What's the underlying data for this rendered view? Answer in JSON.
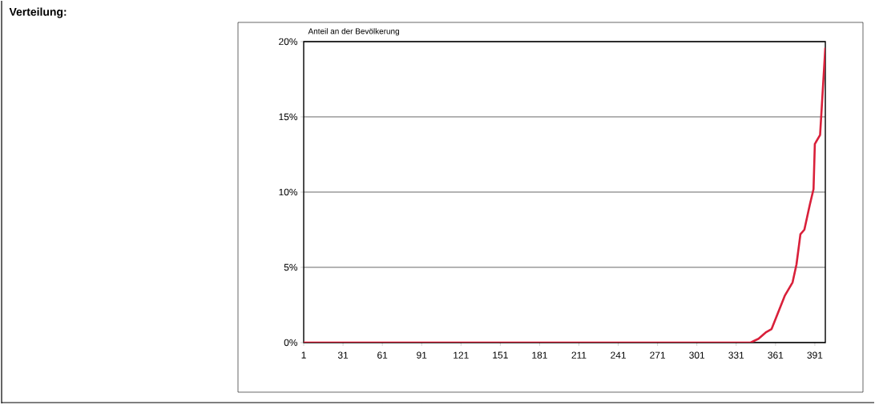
{
  "chart_data": {
    "type": "line",
    "title": "Verteilung:",
    "ylabel": "Anteil an der Bevölkerung",
    "x": [
      1,
      342,
      348,
      354,
      358,
      363,
      368,
      374,
      377,
      380,
      383,
      387,
      390,
      391,
      395,
      399
    ],
    "values": [
      0,
      0,
      0.25,
      0.7,
      0.9,
      2.0,
      3.1,
      4.0,
      5.2,
      7.2,
      7.5,
      9.1,
      10.2,
      13.2,
      13.8,
      19.6
    ],
    "color": "#d9203a",
    "xlim": [
      1,
      399
    ],
    "xticks": [
      1,
      31,
      61,
      91,
      121,
      151,
      181,
      211,
      241,
      271,
      301,
      331,
      361,
      391
    ],
    "ylim": [
      0,
      20
    ],
    "yticks": [
      {
        "value": 0,
        "label": "0%"
      },
      {
        "value": 5,
        "label": "5%"
      },
      {
        "value": 10,
        "label": "10%"
      },
      {
        "value": 15,
        "label": "15%"
      },
      {
        "value": 20,
        "label": "20%"
      }
    ],
    "grid": "y",
    "marker": "none",
    "line_style": "solid"
  }
}
